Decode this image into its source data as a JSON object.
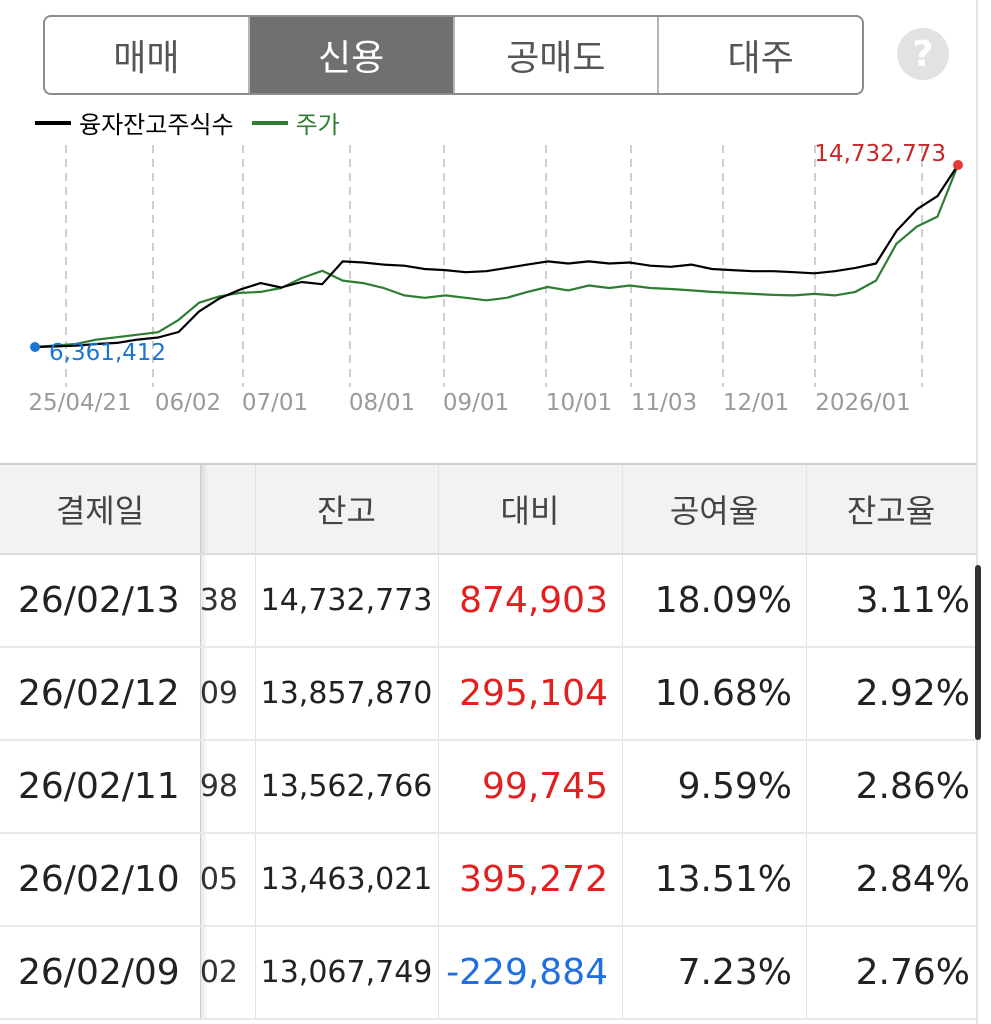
{
  "tabs": [
    "매매",
    "신용",
    "공매도",
    "대주"
  ],
  "active_tab": "신용",
  "help_icon": "?",
  "legend": [
    {
      "label": "융자잔고주식수",
      "color": "#000000"
    },
    {
      "label": "주가",
      "color": "#2e7d32"
    }
  ],
  "chart_data": {
    "type": "line",
    "x_ticks": [
      "25/04/21",
      "06/02",
      "07/01",
      "08/01",
      "09/01",
      "10/01",
      "11/03",
      "12/01",
      "2026/01"
    ],
    "series": [
      {
        "name": "융자잔고주식수",
        "color": "#000000",
        "values": [
          6361412,
          6390000,
          6420000,
          6500000,
          6550000,
          6700000,
          6800000,
          7050000,
          8000000,
          8600000,
          9000000,
          9300000,
          9100000,
          9350000,
          9250000,
          10300000,
          10250000,
          10150000,
          10100000,
          9950000,
          9900000,
          9800000,
          9850000,
          10000000,
          10150000,
          10300000,
          10200000,
          10300000,
          10200000,
          10250000,
          10100000,
          10050000,
          10150000,
          9950000,
          9900000,
          9850000,
          9850000,
          9800000,
          9750000,
          9850000,
          10000000,
          10200000,
          11700000,
          12700000,
          13300000,
          14732773
        ]
      },
      {
        "name": "주가",
        "color": "#2e7d32",
        "values": [
          48000,
          48300,
          48600,
          49500,
          50000,
          50500,
          51000,
          53500,
          57000,
          58300,
          59000,
          59200,
          60000,
          62000,
          63500,
          61500,
          61000,
          60000,
          58500,
          58000,
          58500,
          58000,
          57500,
          58000,
          59200,
          60200,
          59500,
          60500,
          60000,
          60500,
          60000,
          59800,
          59500,
          59200,
          59000,
          58800,
          58600,
          58500,
          58800,
          58500,
          59200,
          61500,
          69000,
          72500,
          74500,
          85000
        ]
      }
    ],
    "annotations": {
      "start_label": "6,361,412",
      "end_label": "14,732,773"
    },
    "start_color": "#1976d2",
    "end_color": "#e53935",
    "grid": "vertical-dashed"
  },
  "table": {
    "headers": [
      "결제일",
      "잔고",
      "대비",
      "공여율",
      "잔고율"
    ],
    "rows": [
      {
        "date": "26/02/13",
        "cut": "38",
        "balance": "14,732,773",
        "change": "874,903",
        "change_sign": "pos",
        "credit_rate": "18.09%",
        "balance_rate": "3.11%"
      },
      {
        "date": "26/02/12",
        "cut": "09",
        "balance": "13,857,870",
        "change": "295,104",
        "change_sign": "pos",
        "credit_rate": "10.68%",
        "balance_rate": "2.92%"
      },
      {
        "date": "26/02/11",
        "cut": "98",
        "balance": "13,562,766",
        "change": "99,745",
        "change_sign": "pos",
        "credit_rate": "9.59%",
        "balance_rate": "2.86%"
      },
      {
        "date": "26/02/10",
        "cut": "05",
        "balance": "13,463,021",
        "change": "395,272",
        "change_sign": "pos",
        "credit_rate": "13.51%",
        "balance_rate": "2.84%"
      },
      {
        "date": "26/02/09",
        "cut": "02",
        "balance": "13,067,749",
        "change": "-229,884",
        "change_sign": "neg",
        "credit_rate": "7.23%",
        "balance_rate": "2.76%"
      }
    ]
  }
}
